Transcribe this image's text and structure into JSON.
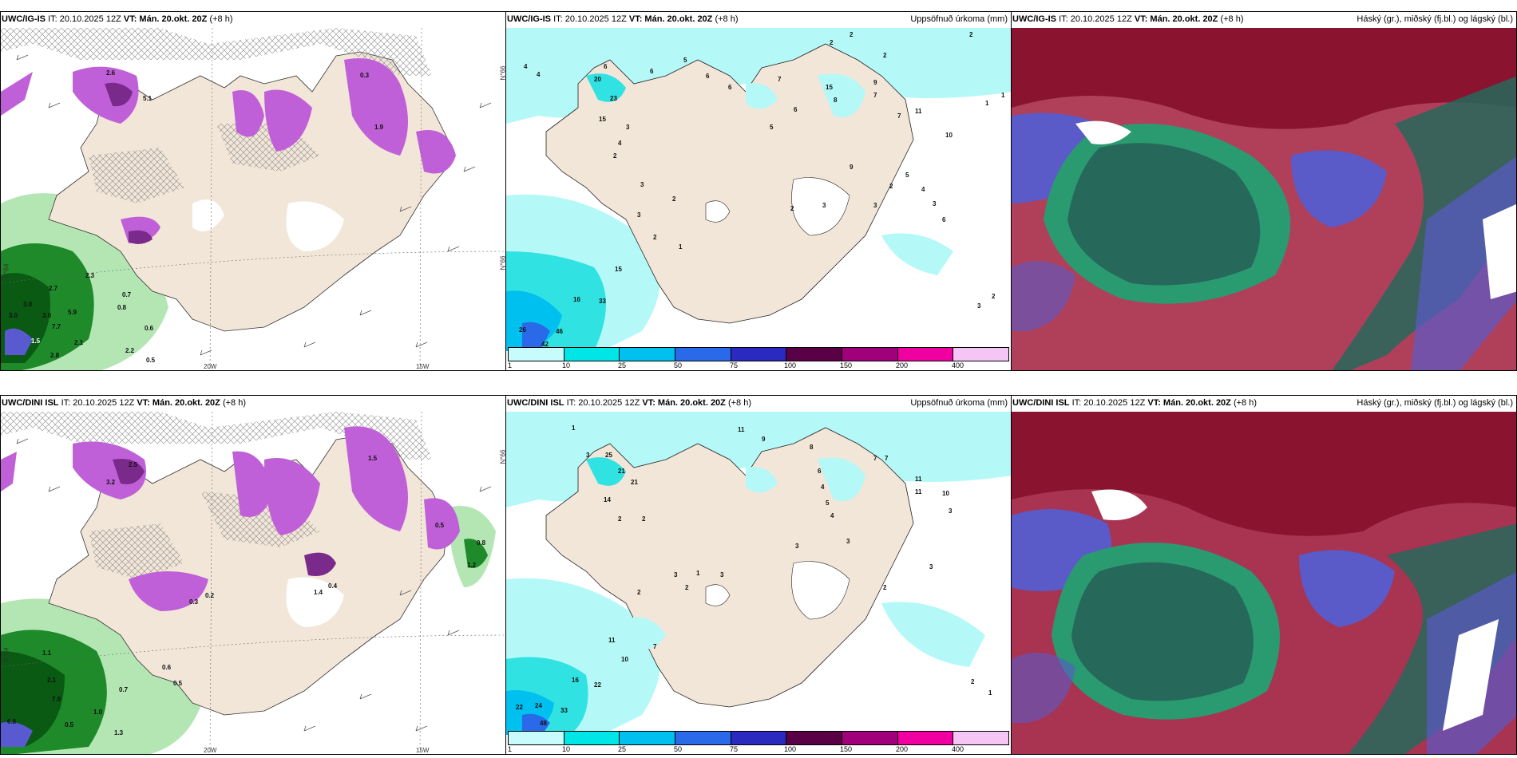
{
  "rows": [
    {
      "model": "UWC/IG-IS",
      "panels": [
        {
          "type": "cloud",
          "title_model": "UWC/IG-IS",
          "title_it": "IT: 20.10.2025 12Z",
          "title_vt_label": "VT:",
          "title_vt": "Mán. 20.okt. 20Z",
          "title_step": "(+8 h)",
          "lon_labels": [
            "20W",
            "15W"
          ],
          "lat_labels": [
            "N°66",
            "N°64",
            "N°66"
          ],
          "values": [
            "2.6",
            "5.1",
            "0.3",
            "1.9",
            "2.7",
            "3.0",
            "3.0",
            "3.0",
            "5.9",
            "7.7",
            "2.3",
            "0.7",
            "0.8",
            "0.6",
            "2.2",
            "0.5",
            "2.8",
            "1.5",
            "2.1"
          ]
        },
        {
          "type": "precip",
          "title_model": "UWC/IG-IS",
          "title_it": "IT: 20.10.2025 12Z",
          "title_vt_label": "VT:",
          "title_vt": "Mán. 20.okt. 20Z",
          "title_step": "(+8 h)",
          "right_title": "Uppsöfnuð úrkoma (mm)",
          "values": [
            "4",
            "4",
            "20",
            "23",
            "15",
            "6",
            "6",
            "5",
            "6",
            "6",
            "7",
            "2",
            "2",
            "2",
            "15",
            "9",
            "7",
            "7",
            "10",
            "11",
            "2",
            "1",
            "1",
            "16",
            "26",
            "46",
            "42",
            "33",
            "15",
            "3",
            "2",
            "3",
            "2",
            "1",
            "2",
            "4",
            "3",
            "5",
            "6",
            "8",
            "9",
            "3",
            "2",
            "3",
            "2",
            "5",
            "4",
            "3",
            "6",
            "3",
            "2"
          ]
        },
        {
          "type": "cloudlayer",
          "title_model": "UWC/IG-IS",
          "title_it": "IT: 20.10.2025 12Z",
          "title_vt_label": "VT:",
          "title_vt": "Mán. 20.okt. 20Z",
          "title_step": "(+8 h)",
          "right_title": "Háský (gr.), miðský (fj.bl.) og lágský (bl.)"
        }
      ]
    },
    {
      "model": "UWC/DINI ISL",
      "panels": [
        {
          "type": "cloud",
          "title_model": "UWC/DINI ISL",
          "title_it": "IT: 20.10.2025 12Z",
          "title_vt_label": "VT:",
          "title_vt": "Mán. 20.okt. 20Z",
          "title_step": "(+8 h)",
          "lon_labels": [
            "20W",
            "15W"
          ],
          "lat_labels": [
            "N°66",
            "N°64"
          ],
          "values": [
            "3.2",
            "2.5",
            "1.5",
            "0.5",
            "0.8",
            "1.2",
            "1.1",
            "2.1",
            "7.9",
            "6.8",
            "0.5",
            "1.0",
            "1.3",
            "0.7",
            "0.6",
            "0.5",
            "1.4",
            "0.4",
            "0.3",
            "0.2"
          ]
        },
        {
          "type": "precip",
          "title_model": "UWC/DINI ISL",
          "title_it": "IT: 20.10.2025 12Z",
          "title_vt_label": "VT:",
          "title_vt": "Mán. 20.okt. 20Z",
          "title_step": "(+8 h)",
          "right_title": "Uppsöfnuð úrkoma (mm)",
          "values": [
            "1",
            "3",
            "9",
            "11",
            "25",
            "21",
            "21",
            "14",
            "2",
            "2",
            "16",
            "22",
            "24",
            "33",
            "48",
            "22",
            "10",
            "11",
            "7",
            "3",
            "3",
            "2",
            "2",
            "1",
            "3",
            "8",
            "6",
            "4",
            "5",
            "4",
            "3",
            "11",
            "11",
            "10",
            "3",
            "7",
            "7",
            "2",
            "3",
            "2",
            "1"
          ]
        },
        {
          "type": "cloudlayer",
          "title_model": "UWC/DINI ISL",
          "title_it": "IT: 20.10.2025 12Z",
          "title_vt_label": "VT:",
          "title_vt": "Mán. 20.okt. 20Z",
          "title_step": "(+8 h)",
          "right_title": "Háský (gr.), miðský (fj.bl.) og lágský (bl.)"
        }
      ]
    }
  ],
  "colorbar": {
    "ticks": [
      "1",
      "10",
      "25",
      "50",
      "75",
      "100",
      "150",
      "200",
      "400"
    ],
    "colors": [
      "#c8fbfb",
      "#00e6e6",
      "#00c0f0",
      "#2a6ae8",
      "#2a2ac0",
      "#5a0046",
      "#a0007a",
      "#f000a0",
      "#f5c6f5"
    ]
  },
  "colors": {
    "land": "#f2e6d8",
    "cyan_light": "#b4f8f8",
    "cyan": "#30e2e2",
    "magenta": "#c060d8",
    "green_dark": "#0a5a14",
    "green_light": "#b4e6b4",
    "cloud_red": "#8a1430",
    "cloud_green": "#26685a",
    "cloud_blue": "#5a5ac8"
  }
}
